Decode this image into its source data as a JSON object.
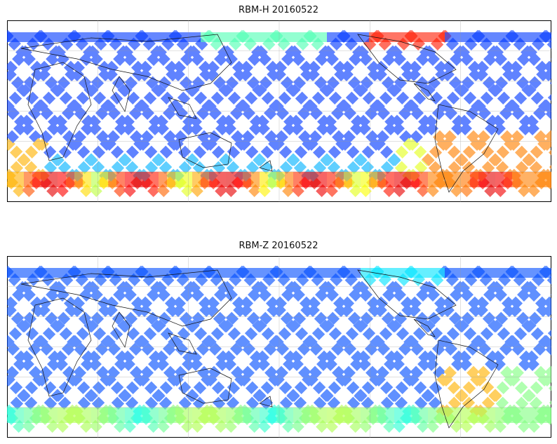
{
  "figure": {
    "panels": [
      {
        "title": "RBM-H 20160522",
        "colormap": "jet",
        "alpha": 0.6,
        "high_value_regions": [
          "southern high latitudes",
          "north Pacific near 50N",
          "South America / South Atlantic"
        ]
      },
      {
        "title": "RBM-Z 20160522",
        "colormap": "jet",
        "alpha": 0.6,
        "high_value_regions": [
          "South America / South Atlantic"
        ]
      }
    ],
    "map": {
      "projection": "cylindrical",
      "gridlines": true,
      "coastlines": true,
      "swath_pattern": "crossing satellite tracks"
    }
  }
}
